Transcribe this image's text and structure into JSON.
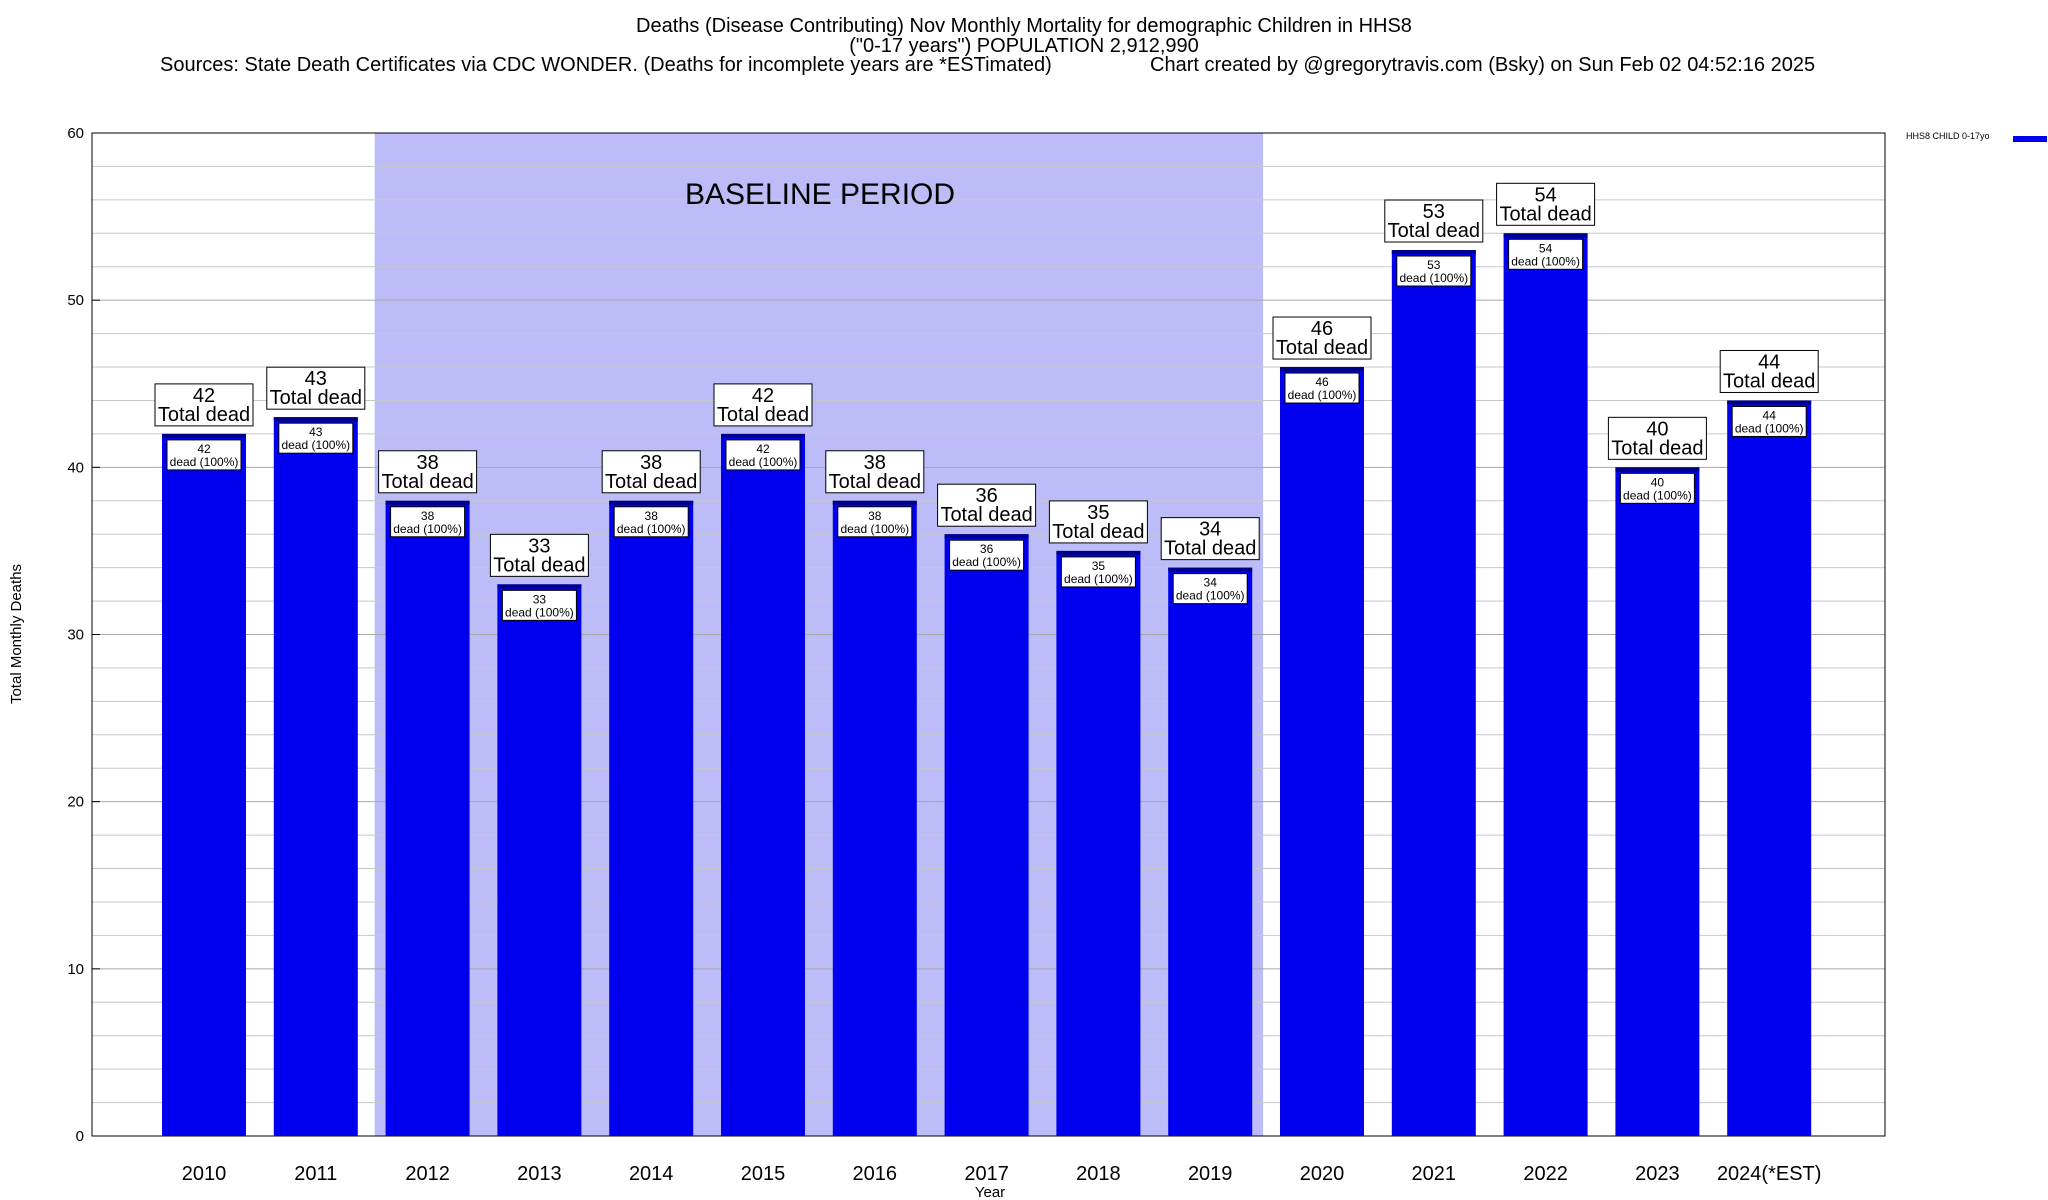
{
  "header": {
    "title_line1": "Deaths (Disease Contributing) Nov Monthly Mortality for demographic Children in HHS8",
    "title_line2": "(\"0-17 years\") POPULATION 2,912,990",
    "sources": "Sources: State Death Certificates via CDC WONDER. (Deaths for incomplete years are *ESTimated)",
    "credit": "Chart created by @gregorytravis.com (Bsky) on Sun Feb 02 04:52:16 2025"
  },
  "legend": {
    "label": "HHS8 CHILD 0-17yo",
    "placement": "top-right"
  },
  "colors": {
    "bar": "#0000ee",
    "bar_edge": "#000088",
    "baseline_shade": "#bcbcf8",
    "grid": "#c8c8c8"
  },
  "chart_data": {
    "type": "bar",
    "xlabel": "Year",
    "ylabel": "Total Monthly Deaths",
    "ylim": [
      0,
      60
    ],
    "yticks": [
      0,
      10,
      20,
      30,
      40,
      50,
      60
    ],
    "grid": true,
    "categories": [
      "2010",
      "2011",
      "2012",
      "2013",
      "2014",
      "2015",
      "2016",
      "2017",
      "2018",
      "2019",
      "2020",
      "2021",
      "2022",
      "2023",
      "2024(*EST)"
    ],
    "series": [
      {
        "name": "HHS8 CHILD 0-17yo",
        "values": [
          42,
          43,
          38,
          33,
          38,
          42,
          38,
          36,
          35,
          34,
          46,
          53,
          54,
          40,
          44
        ]
      }
    ],
    "top_label_suffix": "Total dead",
    "inner_label_suffix": "dead (100%)",
    "baseline": {
      "label": "BASELINE PERIOD",
      "start": "2012",
      "end": "2019"
    }
  }
}
